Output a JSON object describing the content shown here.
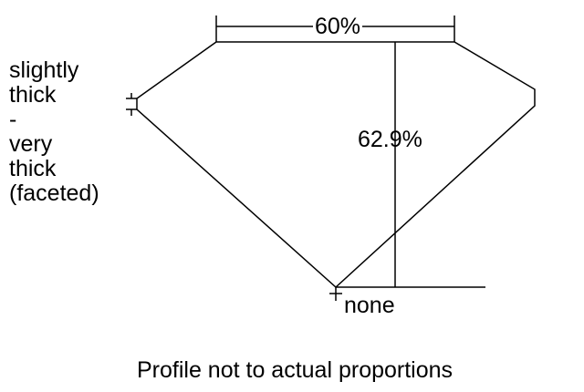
{
  "labels": {
    "girdle": "slightly\nthick\n-\nvery\nthick\n(faceted)",
    "table_percent": "60%",
    "depth_percent": "62.9%",
    "culet": "none",
    "note": "Profile not to actual proportions"
  },
  "colors": {
    "line": "#000000",
    "background": "#ffffff"
  }
}
